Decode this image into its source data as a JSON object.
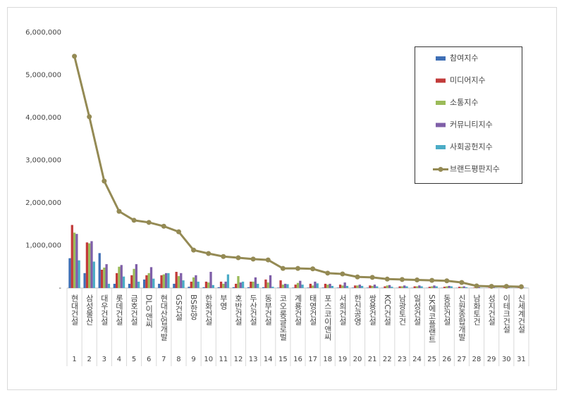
{
  "chart_data": {
    "type": "bar",
    "categories": [
      "현대건설",
      "삼성물산",
      "대우건설",
      "롯데건설",
      "금호건설",
      "DL이앤씨",
      "현대산업개발",
      "GS건설",
      "BS한양",
      "한화건설",
      "부영",
      "호반건설",
      "두산건설",
      "동부건설",
      "코오롱글로벌",
      "계룡건설",
      "태영건설",
      "포스코이앤씨",
      "서희건설",
      "한신공영",
      "쌍용건설",
      "KCC건설",
      "남광토건",
      "일성건설",
      "SK에코플랜트",
      "동문건설",
      "신원종합개발",
      "남화토건",
      "성지건설",
      "이테크건설",
      "신세계건설"
    ],
    "category_numbers": [
      1,
      2,
      3,
      4,
      5,
      6,
      7,
      8,
      9,
      10,
      11,
      12,
      13,
      14,
      15,
      16,
      17,
      18,
      19,
      20,
      21,
      22,
      23,
      24,
      25,
      26,
      27,
      28,
      29,
      30,
      31
    ],
    "series": [
      {
        "name": "참여지수",
        "color": "#3f6fb5",
        "values": [
          700000,
          350000,
          820000,
          100000,
          100000,
          200000,
          100000,
          100000,
          30000,
          20000,
          20000,
          20000,
          20000,
          20000,
          10000,
          10000,
          10000,
          10000,
          10000,
          10000,
          10000,
          5000,
          5000,
          5000,
          5000,
          5000,
          5000,
          2000,
          2000,
          2000,
          2000
        ]
      },
      {
        "name": "미디어지수",
        "color": "#c23b3a",
        "values": [
          1480000,
          1070000,
          430000,
          350000,
          300000,
          300000,
          300000,
          380000,
          150000,
          150000,
          150000,
          100000,
          150000,
          200000,
          180000,
          80000,
          100000,
          100000,
          80000,
          60000,
          60000,
          40000,
          40000,
          40000,
          30000,
          30000,
          30000,
          10000,
          10000,
          10000,
          10000
        ]
      },
      {
        "name": "소통지수",
        "color": "#9bbb59",
        "values": [
          1300000,
          1050000,
          480000,
          500000,
          450000,
          350000,
          320000,
          280000,
          250000,
          130000,
          100000,
          280000,
          150000,
          130000,
          80000,
          120000,
          60000,
          80000,
          60000,
          60000,
          50000,
          60000,
          40000,
          40000,
          40000,
          40000,
          30000,
          10000,
          10000,
          10000,
          10000
        ]
      },
      {
        "name": "커뮤니티지수",
        "color": "#7f5fa8",
        "values": [
          1270000,
          1100000,
          560000,
          540000,
          560000,
          490000,
          350000,
          350000,
          300000,
          380000,
          150000,
          130000,
          250000,
          300000,
          100000,
          170000,
          150000,
          100000,
          130000,
          80000,
          80000,
          70000,
          60000,
          60000,
          60000,
          50000,
          40000,
          20000,
          15000,
          15000,
          10000
        ]
      },
      {
        "name": "사회공헌지수",
        "color": "#4bacc6",
        "values": [
          650000,
          620000,
          100000,
          270000,
          150000,
          220000,
          350000,
          180000,
          150000,
          70000,
          320000,
          150000,
          100000,
          30000,
          90000,
          80000,
          110000,
          50000,
          50000,
          50000,
          40000,
          30000,
          40000,
          40000,
          40000,
          40000,
          20000,
          5000,
          5000,
          5000,
          5000
        ]
      },
      {
        "name": "브랜드평판지수",
        "type": "line",
        "color": "#948a54",
        "values": [
          5440000,
          4020000,
          2510000,
          1800000,
          1590000,
          1540000,
          1450000,
          1320000,
          890000,
          810000,
          740000,
          710000,
          680000,
          660000,
          460000,
          460000,
          450000,
          350000,
          330000,
          260000,
          250000,
          210000,
          200000,
          190000,
          180000,
          170000,
          130000,
          50000,
          40000,
          40000,
          30000
        ]
      }
    ],
    "ylim": [
      0,
      6000000
    ],
    "yticks": [
      {
        "value": 0,
        "label": "-"
      },
      {
        "value": 1000000,
        "label": "1,000,000"
      },
      {
        "value": 2000000,
        "label": "2,000,000"
      },
      {
        "value": 3000000,
        "label": "3,000,000"
      },
      {
        "value": 4000000,
        "label": "4,000,000"
      },
      {
        "value": 5000000,
        "label": "5,000,000"
      },
      {
        "value": 6000000,
        "label": "6,000,000"
      }
    ],
    "grid": false,
    "legend_position": "top-right"
  }
}
